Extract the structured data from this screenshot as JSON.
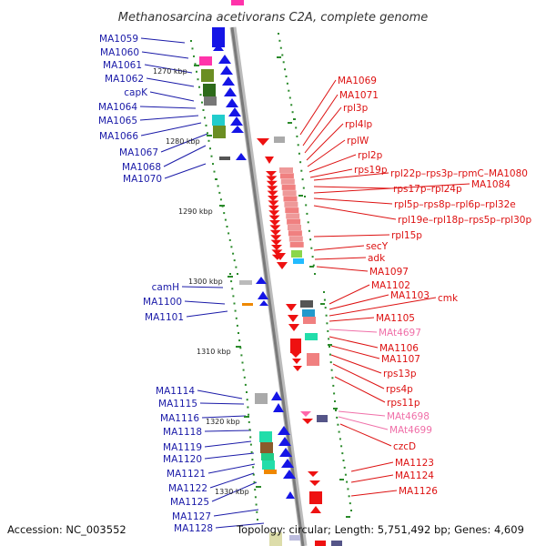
{
  "title": "Methanosarcina acetivorans C2A, complete genome",
  "footer": {
    "accession": "Accession: NC_003552",
    "stats": "Topology: circular; Length: 5,751,492 bp; Genes: 4,609"
  },
  "colors": {
    "left_label": "#1a1aa8",
    "right_label": "#dd1111",
    "pseudo_label": "#f06fa8",
    "strand_plus": "#1515e6",
    "strand_minus": "#ee1111",
    "tick": "#2a8a2a",
    "backbone": "#8c8c8c"
  },
  "scale_ticks": [
    "1270 kbp",
    "1280 kbp",
    "1290 kbp",
    "1300 kbp",
    "1310 kbp",
    "1320 kbp",
    "1330 kbp"
  ],
  "left_labels": [
    "MA1059",
    "MA1060",
    "MA1061",
    "MA1062",
    "capK",
    "MA1064",
    "MA1065",
    "MA1066",
    "MA1067",
    "MA1068",
    "MA1070",
    "camH",
    "MA1100",
    "MA1101",
    "MA1114",
    "MA1115",
    "MA1116",
    "MA1118",
    "MA1119",
    "MA1120",
    "MA1121",
    "MA1122",
    "MA1125",
    "MA1127",
    "MA1128"
  ],
  "right_labels": [
    "MA1069",
    "MA1071",
    "rpl3p",
    "rpl4lp",
    "rplW",
    "rpl2p",
    "rps19p",
    "rpl22p–rps3p–rpmC–MA1080",
    "rps17p–rpl24p",
    "MA1084",
    "rpl5p–rps8p–rpl6p–rpl32e",
    "rpl19e–rpl18p–rps5p–rpl30p",
    "rpl15p",
    "secY",
    "adk",
    "MA1097",
    "MA1102",
    "MA1103",
    "cmk",
    "MA1105",
    "MAt4697",
    "MA1106",
    "MA1107",
    "rps13p",
    "rps4p",
    "rps11p",
    "MAt4698",
    "MAt4699",
    "czcD",
    "MA1123",
    "MA1124",
    "MA1126"
  ]
}
